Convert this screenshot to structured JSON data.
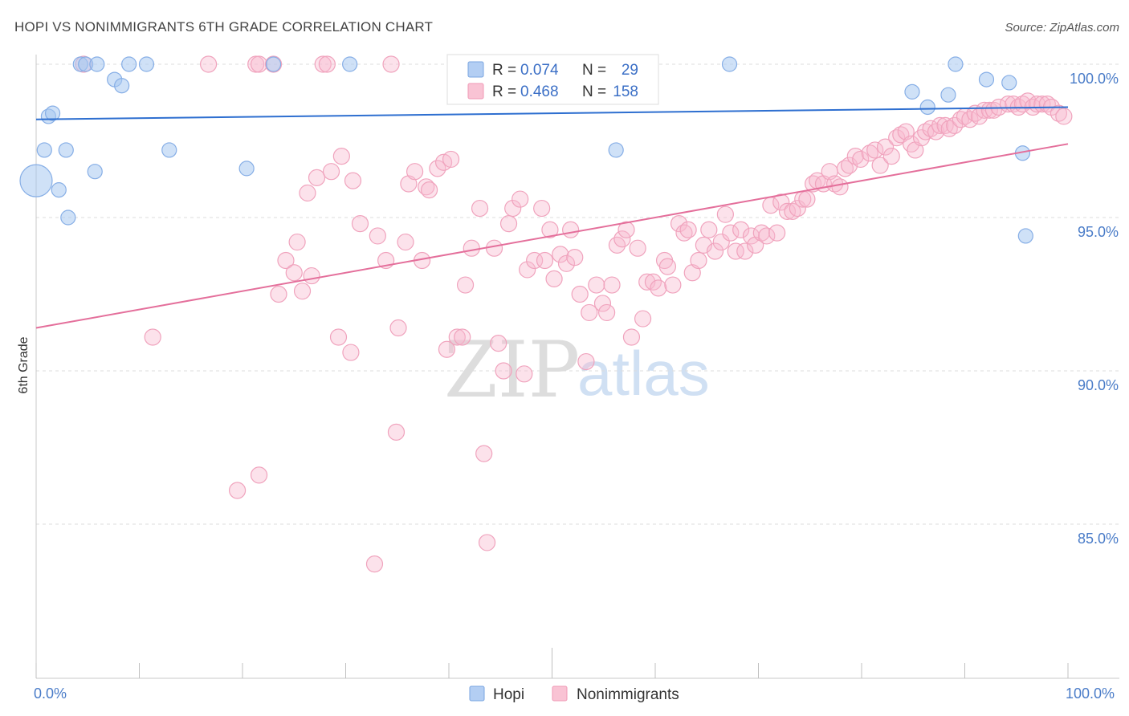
{
  "source": "Source: ZipAtlas.com",
  "watermark": {
    "zip": "ZIP",
    "atlas": "atlas"
  },
  "colors": {
    "hopi_fill": "#b3cef3",
    "hopi_stroke": "#7aa5e0",
    "hopi_trend": "#2e6fd0",
    "nonimmigrants_fill": "#f9c3d4",
    "nonimmigrants_stroke": "#f09ab6",
    "nonimmigrants_trend": "#e46f9b",
    "tick_label": "#4a7cc8",
    "legend_value": "#3b6fc6"
  },
  "chart_data": {
    "type": "scatter",
    "title": "HOPI VS NONIMMIGRANTS 6TH GRADE CORRELATION CHART",
    "ylabel": "6th Grade",
    "xlim": [
      0,
      100
    ],
    "ylim": [
      80,
      100
    ],
    "grid": true,
    "legend_position": "top-center",
    "x_ticks": [
      0,
      10,
      20,
      30,
      40,
      50,
      60,
      70,
      80,
      90,
      100
    ],
    "x_tick_labels": [
      {
        "value": 0,
        "label": "0.0%"
      },
      {
        "value": 100,
        "label": "100.0%"
      }
    ],
    "y_tick_labels": [
      {
        "value": 100,
        "label": "100.0%"
      },
      {
        "value": 95,
        "label": "95.0%"
      },
      {
        "value": 90,
        "label": "90.0%"
      },
      {
        "value": 85,
        "label": "85.0%"
      }
    ],
    "legend_labels": {
      "r_label": "R =",
      "n_label": "N ="
    },
    "series": [
      {
        "name": "Hopi",
        "r": "0.074",
        "n": "29",
        "trend": {
          "x": [
            0,
            100
          ],
          "y": [
            98.2,
            98.6
          ]
        },
        "points": [
          [
            0.0,
            96.2
          ],
          [
            1.2,
            98.3
          ],
          [
            1.6,
            98.4
          ],
          [
            0.8,
            97.2
          ],
          [
            2.9,
            97.2
          ],
          [
            2.2,
            95.9
          ],
          [
            3.1,
            95.0
          ],
          [
            4.3,
            100.0
          ],
          [
            4.8,
            100.0
          ],
          [
            5.9,
            100.0
          ],
          [
            5.7,
            96.5
          ],
          [
            7.6,
            99.5
          ],
          [
            8.3,
            99.3
          ],
          [
            9.0,
            100.0
          ],
          [
            10.7,
            100.0
          ],
          [
            12.9,
            97.2
          ],
          [
            20.4,
            96.6
          ],
          [
            23.0,
            100.0
          ],
          [
            30.4,
            100.0
          ],
          [
            56.2,
            97.2
          ],
          [
            67.2,
            100.0
          ],
          [
            84.9,
            99.1
          ],
          [
            86.4,
            98.6
          ],
          [
            88.4,
            99.0
          ],
          [
            89.1,
            100.0
          ],
          [
            92.1,
            99.5
          ],
          [
            94.3,
            99.4
          ],
          [
            95.6,
            97.1
          ],
          [
            95.9,
            94.4
          ]
        ]
      },
      {
        "name": "Nonimmigrants",
        "r": "0.468",
        "n": "158",
        "trend": {
          "x": [
            0,
            100
          ],
          "y": [
            91.4,
            97.4
          ]
        },
        "points": [
          [
            4.6,
            100.0
          ],
          [
            16.7,
            100.0
          ],
          [
            21.3,
            100.0
          ],
          [
            21.6,
            100.0
          ],
          [
            23.0,
            100.0
          ],
          [
            27.8,
            100.0
          ],
          [
            28.2,
            100.0
          ],
          [
            34.4,
            100.0
          ],
          [
            11.3,
            91.1
          ],
          [
            19.5,
            86.1
          ],
          [
            21.6,
            86.6
          ],
          [
            23.5,
            92.5
          ],
          [
            24.2,
            93.6
          ],
          [
            25.0,
            93.2
          ],
          [
            25.3,
            94.2
          ],
          [
            25.8,
            92.6
          ],
          [
            26.3,
            95.8
          ],
          [
            26.7,
            93.1
          ],
          [
            27.2,
            96.3
          ],
          [
            28.6,
            96.5
          ],
          [
            29.3,
            91.1
          ],
          [
            29.6,
            97.0
          ],
          [
            30.5,
            90.6
          ],
          [
            30.7,
            96.2
          ],
          [
            31.4,
            94.8
          ],
          [
            32.8,
            83.7
          ],
          [
            33.1,
            94.4
          ],
          [
            33.9,
            93.6
          ],
          [
            34.9,
            88.0
          ],
          [
            35.1,
            91.4
          ],
          [
            35.8,
            94.2
          ],
          [
            36.1,
            96.1
          ],
          [
            36.7,
            96.5
          ],
          [
            37.4,
            93.6
          ],
          [
            37.8,
            96.0
          ],
          [
            38.1,
            95.9
          ],
          [
            38.9,
            96.6
          ],
          [
            39.5,
            96.8
          ],
          [
            39.8,
            90.7
          ],
          [
            40.2,
            96.9
          ],
          [
            40.8,
            91.1
          ],
          [
            41.3,
            91.1
          ],
          [
            41.6,
            92.8
          ],
          [
            42.2,
            94.0
          ],
          [
            43.0,
            95.3
          ],
          [
            43.4,
            87.3
          ],
          [
            43.7,
            84.4
          ],
          [
            44.4,
            94.0
          ],
          [
            44.8,
            90.9
          ],
          [
            45.3,
            90.0
          ],
          [
            45.8,
            94.8
          ],
          [
            46.2,
            95.3
          ],
          [
            46.9,
            95.6
          ],
          [
            47.3,
            89.9
          ],
          [
            47.6,
            93.3
          ],
          [
            48.3,
            93.6
          ],
          [
            49.0,
            95.3
          ],
          [
            49.3,
            93.6
          ],
          [
            49.8,
            94.6
          ],
          [
            50.2,
            93.0
          ],
          [
            50.8,
            93.8
          ],
          [
            51.4,
            93.5
          ],
          [
            51.8,
            94.6
          ],
          [
            52.2,
            93.7
          ],
          [
            52.7,
            92.5
          ],
          [
            53.3,
            90.3
          ],
          [
            53.6,
            91.9
          ],
          [
            54.3,
            92.8
          ],
          [
            54.9,
            92.2
          ],
          [
            55.3,
            91.9
          ],
          [
            55.8,
            92.8
          ],
          [
            56.3,
            94.1
          ],
          [
            56.8,
            94.3
          ],
          [
            57.2,
            94.6
          ],
          [
            57.7,
            91.1
          ],
          [
            58.3,
            94.0
          ],
          [
            58.8,
            91.7
          ],
          [
            59.2,
            92.9
          ],
          [
            59.8,
            92.9
          ],
          [
            60.3,
            92.7
          ],
          [
            60.9,
            93.6
          ],
          [
            61.2,
            93.4
          ],
          [
            61.7,
            92.8
          ],
          [
            62.3,
            94.8
          ],
          [
            62.8,
            94.5
          ],
          [
            63.2,
            94.6
          ],
          [
            63.6,
            93.2
          ],
          [
            64.2,
            93.6
          ],
          [
            64.7,
            94.1
          ],
          [
            65.2,
            94.6
          ],
          [
            65.8,
            93.9
          ],
          [
            66.4,
            94.2
          ],
          [
            66.8,
            95.1
          ],
          [
            67.3,
            94.5
          ],
          [
            67.8,
            93.9
          ],
          [
            68.3,
            94.6
          ],
          [
            68.7,
            93.9
          ],
          [
            69.3,
            94.4
          ],
          [
            69.7,
            94.1
          ],
          [
            70.3,
            94.5
          ],
          [
            70.8,
            94.4
          ],
          [
            71.2,
            95.4
          ],
          [
            71.8,
            94.5
          ],
          [
            72.2,
            95.5
          ],
          [
            72.8,
            95.2
          ],
          [
            73.3,
            95.2
          ],
          [
            73.8,
            95.3
          ],
          [
            74.3,
            95.6
          ],
          [
            74.7,
            95.6
          ],
          [
            75.3,
            96.1
          ],
          [
            75.7,
            96.2
          ],
          [
            76.3,
            96.1
          ],
          [
            76.9,
            96.5
          ],
          [
            77.4,
            96.1
          ],
          [
            77.9,
            96.0
          ],
          [
            78.4,
            96.6
          ],
          [
            78.8,
            96.7
          ],
          [
            79.4,
            97.0
          ],
          [
            79.9,
            96.9
          ],
          [
            80.8,
            97.1
          ],
          [
            81.3,
            97.2
          ],
          [
            81.8,
            96.7
          ],
          [
            82.3,
            97.3
          ],
          [
            82.9,
            97.0
          ],
          [
            83.4,
            97.6
          ],
          [
            83.8,
            97.7
          ],
          [
            84.3,
            97.8
          ],
          [
            84.8,
            97.4
          ],
          [
            85.2,
            97.2
          ],
          [
            85.8,
            97.6
          ],
          [
            86.2,
            97.8
          ],
          [
            86.7,
            97.9
          ],
          [
            87.2,
            97.8
          ],
          [
            87.6,
            98.0
          ],
          [
            88.1,
            98.0
          ],
          [
            88.5,
            97.9
          ],
          [
            89.0,
            98.0
          ],
          [
            89.6,
            98.2
          ],
          [
            90.0,
            98.3
          ],
          [
            90.5,
            98.2
          ],
          [
            91.0,
            98.4
          ],
          [
            91.4,
            98.3
          ],
          [
            91.9,
            98.5
          ],
          [
            92.4,
            98.5
          ],
          [
            92.8,
            98.5
          ],
          [
            93.3,
            98.6
          ],
          [
            94.2,
            98.7
          ],
          [
            94.7,
            98.7
          ],
          [
            95.2,
            98.6
          ],
          [
            95.6,
            98.7
          ],
          [
            96.1,
            98.8
          ],
          [
            96.6,
            98.6
          ],
          [
            97.0,
            98.7
          ],
          [
            97.5,
            98.7
          ],
          [
            98.0,
            98.7
          ],
          [
            98.4,
            98.6
          ],
          [
            99.1,
            98.4
          ],
          [
            99.6,
            98.3
          ]
        ]
      }
    ]
  }
}
